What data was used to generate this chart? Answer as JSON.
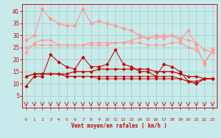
{
  "x": [
    0,
    1,
    2,
    3,
    4,
    5,
    6,
    7,
    8,
    9,
    10,
    11,
    12,
    13,
    14,
    15,
    16,
    17,
    18,
    19,
    20,
    21,
    22,
    23
  ],
  "line_pink1": [
    23,
    27,
    28,
    28,
    26,
    26,
    26,
    26,
    27,
    27,
    27,
    27,
    27,
    28,
    29,
    29,
    29,
    30,
    30,
    29,
    28,
    27,
    24,
    23
  ],
  "line_pink2": [
    25,
    26,
    26,
    26,
    26,
    26,
    26,
    26,
    26,
    26,
    26,
    27,
    27,
    27,
    27,
    26,
    26,
    26,
    27,
    27,
    25,
    24,
    19,
    24
  ],
  "line_pink3": [
    28,
    30,
    41,
    37,
    35,
    34,
    34,
    41,
    35,
    36,
    35,
    34,
    33,
    32,
    30,
    29,
    30,
    29,
    30,
    28,
    32,
    26,
    18,
    24
  ],
  "line_red1": [
    9,
    13,
    13,
    22,
    19,
    17,
    16,
    21,
    17,
    17,
    18,
    24,
    18,
    17,
    15,
    15,
    13,
    18,
    17,
    15,
    11,
    10,
    12,
    12
  ],
  "line_red2": [
    13,
    14,
    14,
    14,
    14,
    14,
    15,
    15,
    15,
    16,
    16,
    16,
    16,
    16,
    16,
    16,
    15,
    15,
    15,
    14,
    13,
    13,
    12,
    12
  ],
  "line_red3": [
    13,
    14,
    14,
    14,
    14,
    13,
    13,
    13,
    13,
    13,
    13,
    13,
    13,
    13,
    13,
    13,
    13,
    13,
    13,
    12,
    11,
    11,
    12,
    12
  ],
  "line_red4": [
    13,
    14,
    14,
    14,
    14,
    13,
    13,
    13,
    13,
    12,
    12,
    12,
    12,
    12,
    12,
    12,
    12,
    12,
    12,
    12,
    11,
    10,
    12,
    12
  ],
  "pink_color": "#ff9999",
  "red_color": "#cc0000",
  "bg_color": "#c8eaea",
  "grid_color": "#99ccbb",
  "xlabel": "Vent moyen/en rafales ( km/h )",
  "tick_color": "#cc0000",
  "ylim": [
    0,
    43
  ],
  "yticks": [
    5,
    10,
    15,
    20,
    25,
    30,
    35,
    40
  ]
}
